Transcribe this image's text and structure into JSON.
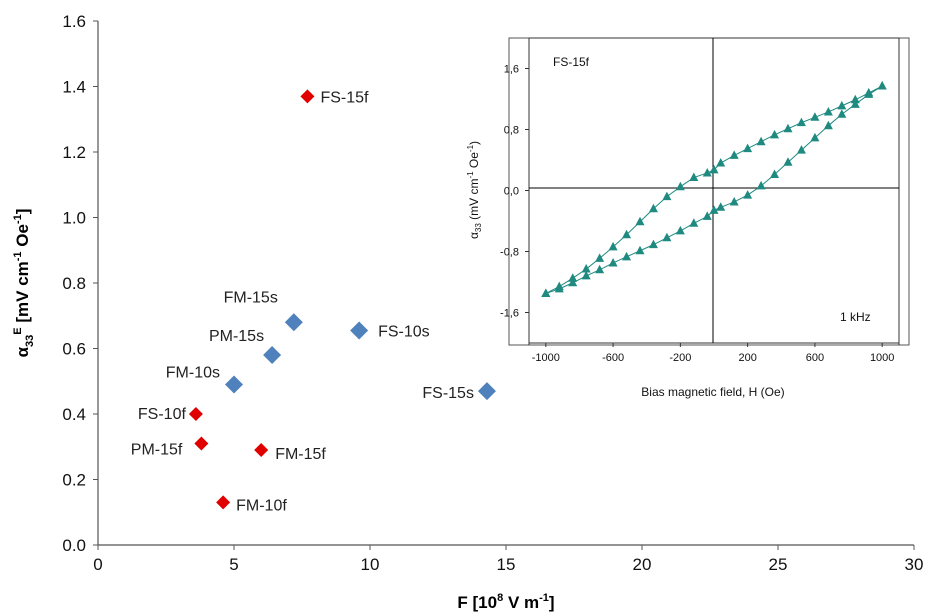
{
  "chart_data": [
    {
      "type": "scatter",
      "xlabel": "F [10⁸ V m⁻¹]",
      "ylabel": "α₃₃ᴱ [mV cm⁻¹ Oe⁻¹]",
      "xlim": [
        0,
        30
      ],
      "ylim": [
        0,
        1.6
      ],
      "x_ticks": [
        "0",
        "5",
        "10",
        "15",
        "20",
        "25",
        "30"
      ],
      "y_ticks": [
        "0.0",
        "0.2",
        "0.4",
        "0.6",
        "0.8",
        "1.0",
        "1.2",
        "1.4",
        "1.6"
      ],
      "grid": false,
      "series": [
        {
          "color": "#e00000",
          "marker": "diamond",
          "points": [
            {
              "label": "FS-15f",
              "x": 7.7,
              "y": 1.37
            },
            {
              "label": "FS-10f",
              "x": 3.6,
              "y": 0.4
            },
            {
              "label": "PM-15f",
              "x": 3.8,
              "y": 0.31
            },
            {
              "label": "FM-15f",
              "x": 6.0,
              "y": 0.29
            },
            {
              "label": "FM-10f",
              "x": 4.6,
              "y": 0.13
            }
          ]
        },
        {
          "color": "#4f81bd",
          "marker": "diamond",
          "points": [
            {
              "label": "FM-15s",
              "x": 7.2,
              "y": 0.68
            },
            {
              "label": "FS-10s",
              "x": 9.6,
              "y": 0.655
            },
            {
              "label": "PM-15s",
              "x": 6.4,
              "y": 0.58
            },
            {
              "label": "FM-10s",
              "x": 5.0,
              "y": 0.49
            },
            {
              "label": "FS-15s",
              "x": 14.3,
              "y": 0.47
            }
          ]
        }
      ]
    },
    {
      "type": "line",
      "title": "FS-15f",
      "annotation": "1 kHz",
      "xlabel": "Bias magnetic field, H (Oe)",
      "ylabel": "α₃₃ (mV cm⁻¹ Oe⁻¹)",
      "xlim": [
        -1100,
        1100
      ],
      "ylim": [
        -2.0,
        2.0
      ],
      "x_ticks": [
        "-1000",
        "-600",
        "-200",
        "200",
        "600",
        "1000"
      ],
      "y_ticks": [
        "-1,6",
        "-0,8",
        "0,0",
        "0,8",
        "1,6"
      ],
      "color": "#1f8a80",
      "marker": "triangle",
      "series": [
        {
          "x": [
            -1000,
            -920,
            -840,
            -760,
            -680,
            -600,
            -520,
            -440,
            -360,
            -280,
            -200,
            -120,
            -40,
            0,
            40,
            120,
            200,
            280,
            360,
            440,
            520,
            600,
            680,
            760,
            840,
            920,
            1000
          ],
          "y": [
            -1.35,
            -1.26,
            -1.15,
            -1.03,
            -0.89,
            -0.74,
            -0.58,
            -0.41,
            -0.24,
            -0.08,
            0.05,
            0.17,
            0.23,
            0.27,
            0.36,
            0.46,
            0.55,
            0.64,
            0.73,
            0.81,
            0.89,
            0.96,
            1.03,
            1.11,
            1.19,
            1.28,
            1.37
          ]
        },
        {
          "x": [
            1000,
            920,
            840,
            760,
            680,
            600,
            520,
            440,
            360,
            280,
            200,
            120,
            40,
            0,
            -40,
            -120,
            -200,
            -280,
            -360,
            -440,
            -520,
            -600,
            -680,
            -760,
            -840,
            -920,
            -1000
          ],
          "y": [
            1.37,
            1.26,
            1.13,
            1.0,
            0.85,
            0.69,
            0.53,
            0.37,
            0.21,
            0.06,
            -0.06,
            -0.15,
            -0.22,
            -0.26,
            -0.34,
            -0.43,
            -0.53,
            -0.62,
            -0.71,
            -0.79,
            -0.87,
            -0.95,
            -1.04,
            -1.12,
            -1.21,
            -1.29,
            -1.35
          ]
        }
      ]
    }
  ]
}
